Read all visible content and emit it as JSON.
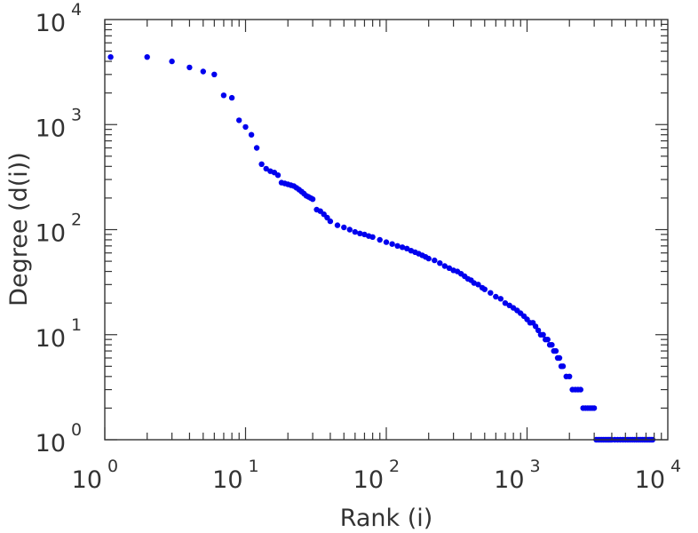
{
  "chart_data": {
    "type": "scatter",
    "xlabel": "Rank (i)",
    "ylabel": "Degree (d(i))",
    "xscale": "log",
    "yscale": "log",
    "xlim": [
      1,
      10000
    ],
    "ylim": [
      1,
      10000
    ],
    "xticks": [
      {
        "value": 1,
        "base": "10",
        "exp": "0"
      },
      {
        "value": 10,
        "base": "10",
        "exp": "1"
      },
      {
        "value": 100,
        "base": "10",
        "exp": "2"
      },
      {
        "value": 1000,
        "base": "10",
        "exp": "3"
      },
      {
        "value": 10000,
        "base": "10",
        "exp": "4"
      }
    ],
    "yticks": [
      {
        "value": 1,
        "base": "10",
        "exp": "0"
      },
      {
        "value": 10,
        "base": "10",
        "exp": "1"
      },
      {
        "value": 100,
        "base": "10",
        "exp": "2"
      },
      {
        "value": 1000,
        "base": "10",
        "exp": "3"
      },
      {
        "value": 10000,
        "base": "10",
        "exp": "4"
      }
    ],
    "grid": false,
    "marker_color": "#0000ee",
    "axis_color": "#333333",
    "series": [
      {
        "x": [
          1.1,
          2,
          3,
          4,
          5,
          6,
          7,
          8,
          9,
          10,
          11,
          12,
          13,
          14,
          15,
          16,
          17,
          18,
          19,
          20,
          21,
          22,
          23,
          24,
          25,
          26,
          27,
          28,
          29,
          30,
          32,
          34,
          36,
          38,
          40,
          45,
          50,
          55,
          60,
          65,
          70,
          75,
          80,
          90,
          100,
          110,
          120,
          130,
          140,
          150,
          160,
          170,
          180,
          190,
          200,
          220,
          240,
          260,
          280,
          300,
          320,
          340,
          360,
          380,
          400,
          420,
          450,
          480,
          500,
          550,
          600,
          650,
          700,
          750,
          800,
          850,
          900,
          950,
          1000,
          1050,
          1100,
          1150,
          1200,
          1250,
          1300,
          1350,
          1400,
          1450,
          1500,
          1550,
          1600,
          1650,
          1700,
          1750,
          1800,
          1900,
          2000,
          2100,
          2200,
          2300,
          2400,
          2500,
          2600,
          2700,
          2800,
          2900,
          3000,
          3100,
          3200,
          3300,
          3400,
          3500,
          3600,
          3700,
          3800,
          3900,
          4000,
          4200,
          4400,
          4600,
          4800,
          5000,
          5200,
          5400,
          5600,
          5800,
          6000,
          6200,
          6400,
          6600,
          6800,
          7000,
          7200,
          7400,
          7600,
          7800
        ],
        "y": [
          4400,
          4400,
          4000,
          3500,
          3200,
          3000,
          1900,
          1800,
          1100,
          950,
          800,
          600,
          420,
          380,
          360,
          350,
          330,
          280,
          275,
          270,
          265,
          260,
          250,
          240,
          230,
          220,
          210,
          205,
          200,
          195,
          155,
          150,
          140,
          130,
          120,
          110,
          105,
          100,
          95,
          92,
          90,
          87,
          85,
          80,
          76,
          73,
          70,
          68,
          66,
          63,
          61,
          59,
          57,
          55,
          53,
          51,
          48,
          45,
          43,
          41,
          40,
          38,
          36,
          34,
          33,
          31,
          30,
          28,
          27,
          25,
          23,
          22,
          20,
          19,
          18,
          17,
          16,
          15,
          14,
          13,
          13,
          12,
          11,
          10,
          10,
          9,
          9,
          8,
          8,
          7,
          7,
          6,
          6,
          5,
          5,
          4,
          4,
          3,
          3,
          3,
          3,
          2,
          2,
          2,
          2,
          2,
          2,
          1,
          1,
          1,
          1,
          1,
          1,
          1,
          1,
          1,
          1,
          1,
          1,
          1,
          1,
          1,
          1,
          1,
          1,
          1,
          1,
          1,
          1,
          1,
          1,
          1,
          1,
          1,
          1,
          1
        ]
      }
    ]
  }
}
